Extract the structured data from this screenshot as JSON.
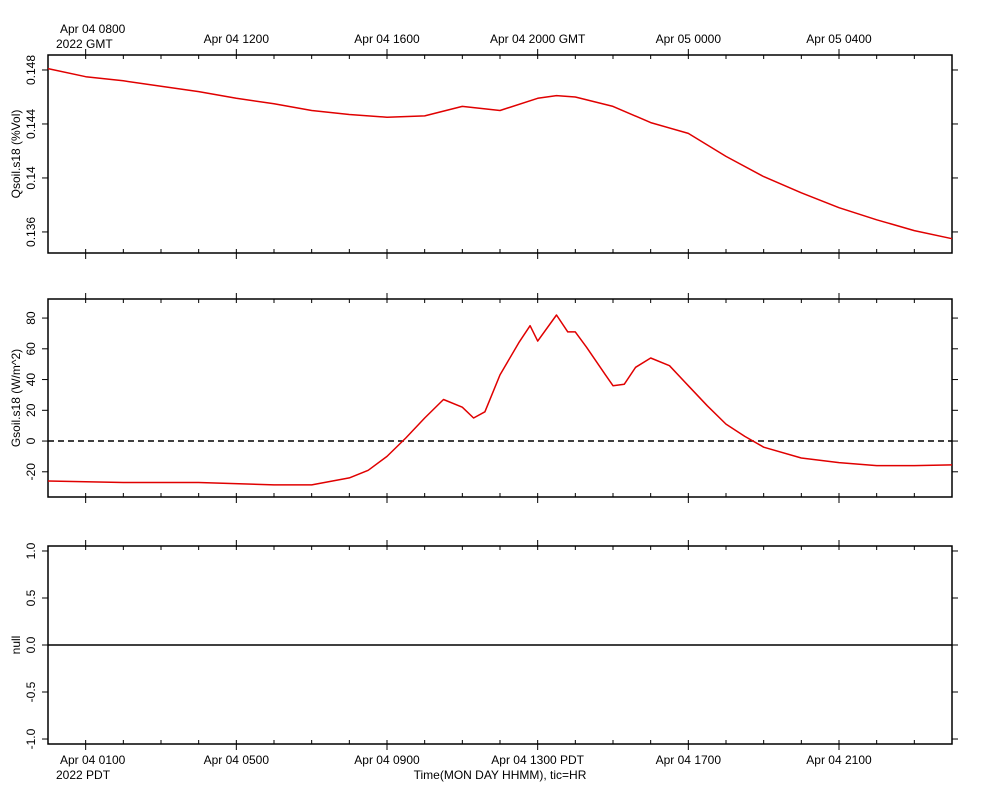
{
  "chart_data": [
    {
      "type": "line",
      "ylabel": "Qsoil.s18 (%Vol)",
      "xlim": [
        0,
        24
      ],
      "x2ticks": [
        {
          "value": 1,
          "label": "Apr 04 0800"
        },
        {
          "value": 5,
          "label": "Apr 04 1200"
        },
        {
          "value": 9,
          "label": "Apr 04 1600"
        },
        {
          "value": 13,
          "label": "Apr 04 2000 GMT"
        },
        {
          "value": 17,
          "label": "Apr 05 0000"
        },
        {
          "value": 21,
          "label": "Apr 05 0400"
        }
      ],
      "x2_year_label": "2022 GMT",
      "ylim": [
        0.13444,
        0.14911
      ],
      "yticks": [
        0.136,
        0.14,
        0.144,
        0.148
      ],
      "x": [
        0,
        1,
        2,
        3,
        4,
        5,
        6,
        7,
        8,
        9,
        10,
        11,
        12,
        13,
        13.5,
        14,
        15,
        16,
        17,
        18,
        19,
        20,
        21,
        22,
        23,
        24
      ],
      "series": [
        {
          "name": "Qsoil.s18",
          "color": "#e00000",
          "values": [
            0.1481,
            0.1475,
            0.1472,
            0.1468,
            0.1464,
            0.1459,
            0.1455,
            0.145,
            0.1447,
            0.1445,
            0.1446,
            0.1453,
            0.145,
            0.1459,
            0.1461,
            0.146,
            0.1453,
            0.1441,
            0.1433,
            0.1416,
            0.1401,
            0.1389,
            0.1378,
            0.1369,
            0.1361,
            0.1355
          ]
        }
      ]
    },
    {
      "type": "line",
      "ylabel": "Gsoil.s18 (W/m^2)",
      "xlim": [
        0,
        24
      ],
      "ylim": [
        -36.4,
        92.4
      ],
      "yticks": [
        -20,
        0,
        20,
        40,
        60,
        80
      ],
      "hline": {
        "value": 0,
        "style": "dashed"
      },
      "x": [
        0,
        2,
        4,
        6,
        7,
        8,
        8.5,
        9,
        9.5,
        10,
        10.5,
        11,
        11.3,
        11.6,
        12,
        12.5,
        12.8,
        13,
        13.5,
        13.8,
        14,
        14.3,
        14.8,
        15,
        15.3,
        15.6,
        16,
        16.5,
        17,
        17.5,
        18,
        18.5,
        19,
        20,
        21,
        22,
        23,
        24
      ],
      "series": [
        {
          "name": "Gsoil.s18",
          "color": "#e00000",
          "values": [
            -26,
            -27,
            -27,
            -28.5,
            -28.5,
            -24,
            -19,
            -10,
            2,
            15,
            27,
            22,
            15,
            19,
            43,
            64,
            75,
            65,
            82,
            71,
            71,
            61,
            43,
            36,
            37,
            48,
            54,
            49,
            36,
            23,
            11,
            3,
            -4,
            -11,
            -14,
            -16,
            -16,
            -15.5
          ]
        }
      ]
    },
    {
      "type": "line",
      "ylabel": "null",
      "xlim": [
        0,
        24
      ],
      "ylim": [
        -1.053,
        1.053
      ],
      "yticks": [
        {
          "value": -1,
          "label": "-1.0"
        },
        {
          "value": -0.5,
          "label": "-0.5"
        },
        {
          "value": 0,
          "label": "0.0"
        },
        {
          "value": 0.5,
          "label": "0.5"
        },
        {
          "value": 1,
          "label": "1.0"
        }
      ],
      "hline": {
        "value": 0,
        "style": "solid"
      },
      "xticks": [
        {
          "value": 1,
          "label": "Apr 04 0100"
        },
        {
          "value": 5,
          "label": "Apr 04 0500"
        },
        {
          "value": 9,
          "label": "Apr 04 0900"
        },
        {
          "value": 13,
          "label": "Apr 04 1300 PDT"
        },
        {
          "value": 17,
          "label": "Apr 04 1700"
        },
        {
          "value": 21,
          "label": "Apr 04 2100"
        }
      ],
      "xminorticks": [
        0,
        1,
        2,
        3,
        4,
        5,
        6,
        7,
        8,
        9,
        10,
        11,
        12,
        13,
        14,
        15,
        16,
        17,
        18,
        19,
        20,
        21,
        22,
        23,
        24
      ],
      "x_year_label": "2022 PDT",
      "xlabel": "Time(MON DAY HHMM), tic=HR",
      "series": []
    }
  ]
}
